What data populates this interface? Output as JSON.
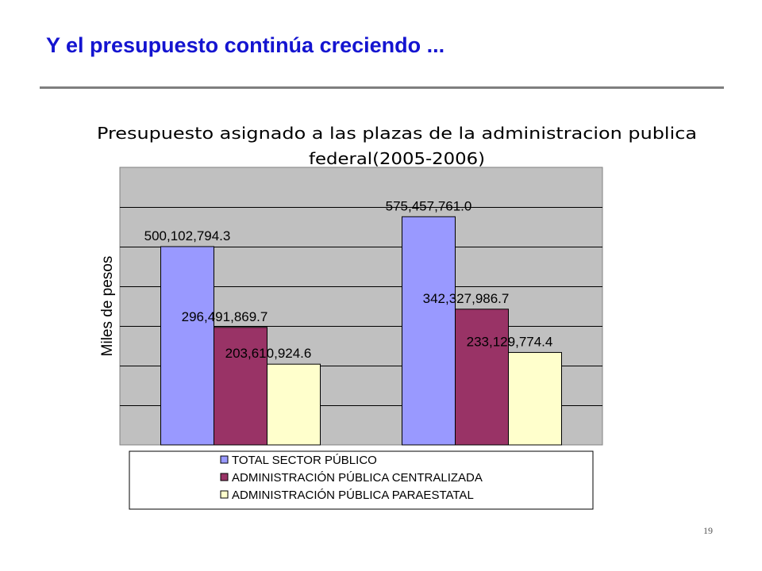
{
  "slide": {
    "title": "Y el presupuesto continúa creciendo ...",
    "page_number": "19"
  },
  "chart_data": {
    "type": "bar",
    "title_lines": [
      "Presupuesto asignado a las plazas de la administracion publica",
      "federal(2005-2006)"
    ],
    "ylabel": "Miles de pesos",
    "xlabel": "",
    "categories": [
      "",
      ""
    ],
    "series": [
      {
        "name": "TOTAL SECTOR PÚBLICO",
        "color": "#9999ff",
        "values": [
          500102794.3,
          575457761.0
        ],
        "labels": [
          "500,102,794.3",
          "575,457,761.0"
        ]
      },
      {
        "name": "ADMINISTRACIÓN PÚBLICA CENTRALIZADA",
        "color": "#993366",
        "values": [
          296491869.7,
          342327986.7
        ],
        "labels": [
          "296,491,869.7",
          "342,327,986.7"
        ]
      },
      {
        "name": "ADMINISTRACIÓN PÚBLICA PARAESTATAL",
        "color": "#ffffcc",
        "values": [
          203610924.6,
          233129774.4
        ],
        "labels": [
          "203,610,924.6",
          "233,129,774.4"
        ]
      }
    ],
    "ylim": [
      0,
      700000000
    ],
    "grid_step": 100000000,
    "grid": true,
    "y_tick_labels_shown": false,
    "legend_position": "bottom",
    "plot_background": "#c0c0c0"
  }
}
